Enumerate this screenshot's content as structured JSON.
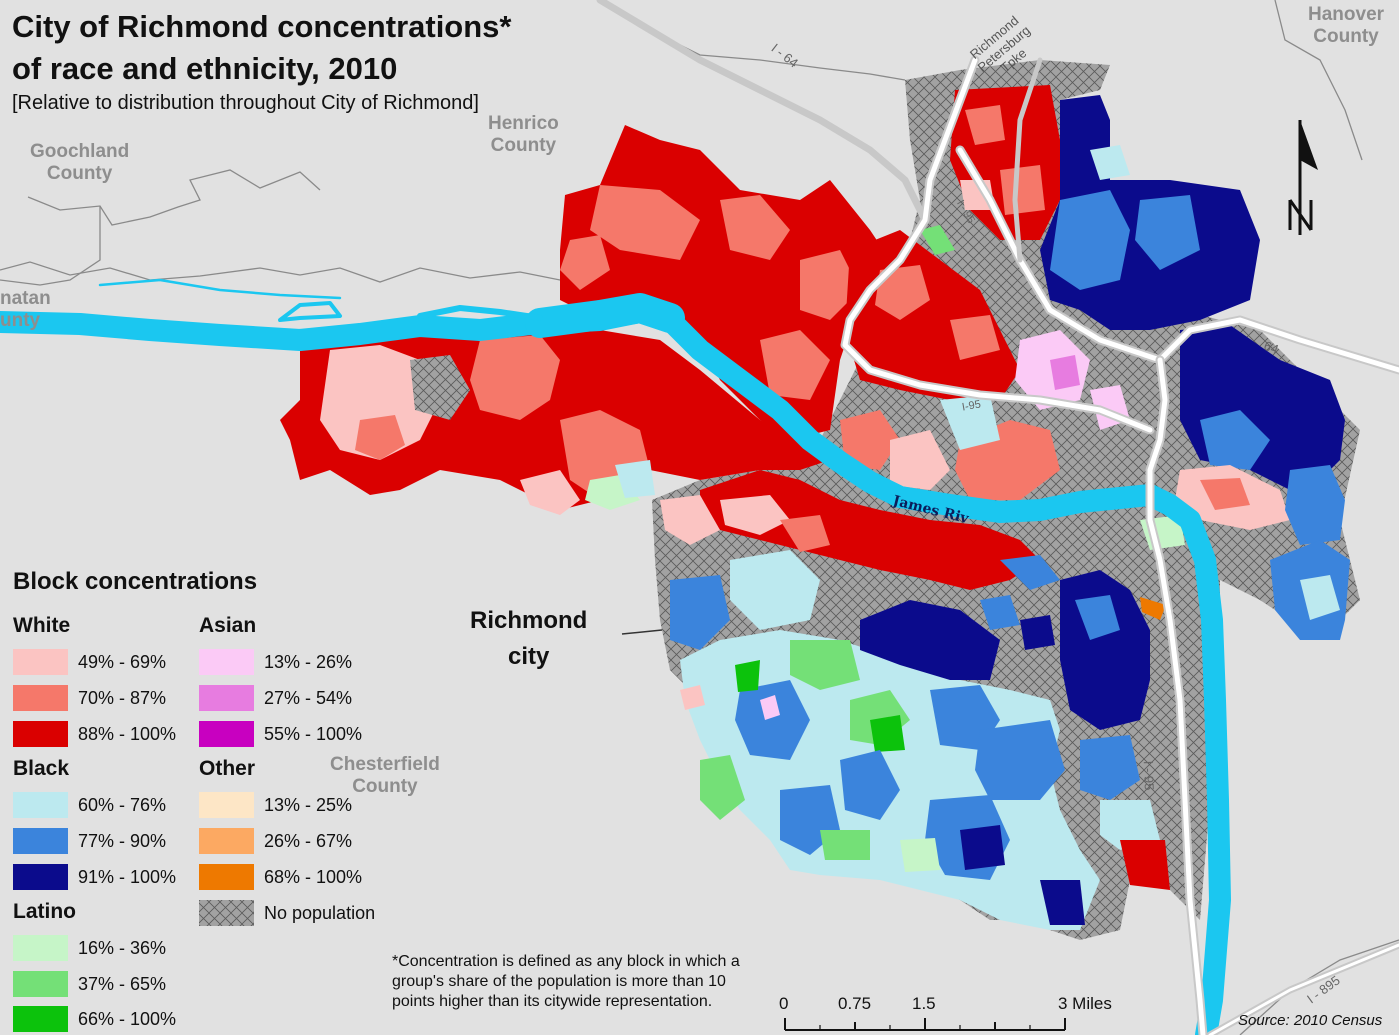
{
  "title_line1": "City of Richmond concentrations*",
  "title_line2": "of race and ethnicity, 2010",
  "subtitle": "[Relative to distribution throughout City of Richmond]",
  "places": {
    "goochland_1": "Goochland",
    "goochland_2": "County",
    "henrico_1": "Henrico",
    "henrico_2": "County",
    "hanover_1": "Hanover",
    "hanover_2": "County",
    "powhatan_1": "natan",
    "powhatan_2": "unty",
    "chesterfield_1": "Chesterfield",
    "chesterfield_2": "County"
  },
  "city_label_1": "Richmond",
  "city_label_2": "city",
  "river_label": "James Riv",
  "roads": {
    "i64_nw": "I - 64",
    "i64_east": "64",
    "i95": "I - 95",
    "i95_mid": "I-95",
    "i95_south": "I - 95",
    "i895": "I - 895",
    "pike_1": "Richmond",
    "pike_2": "Petersburg",
    "pike_3": "Tpke"
  },
  "north_arrow": "N",
  "legend": {
    "title": "Block concentrations",
    "groups": [
      {
        "name": "White",
        "items": [
          {
            "label": "49% - 69%",
            "color": "#fbc4c2"
          },
          {
            "label": "70% - 87%",
            "color": "#f5786a"
          },
          {
            "label": "88% - 100%",
            "color": "#da0000"
          }
        ]
      },
      {
        "name": "Asian",
        "items": [
          {
            "label": "13% - 26%",
            "color": "#fbcaf6"
          },
          {
            "label": "27% - 54%",
            "color": "#e77ce0"
          },
          {
            "label": "55% - 100%",
            "color": "#c800c0"
          }
        ]
      },
      {
        "name": "Black",
        "items": [
          {
            "label": "60% - 76%",
            "color": "#bce9ef"
          },
          {
            "label": "77% - 90%",
            "color": "#3b84dc"
          },
          {
            "label": "91% - 100%",
            "color": "#0b0b8c"
          }
        ]
      },
      {
        "name": "Other",
        "items": [
          {
            "label": "13% - 25%",
            "color": "#fde6c6"
          },
          {
            "label": "26% - 67%",
            "color": "#fca962"
          },
          {
            "label": "68% - 100%",
            "color": "#ee7900"
          }
        ]
      },
      {
        "name": "Latino",
        "items": [
          {
            "label": "16% - 36%",
            "color": "#c6f5c8"
          },
          {
            "label": "37% - 65%",
            "color": "#74e077"
          },
          {
            "label": "66% - 100%",
            "color": "#0cc20c"
          }
        ]
      }
    ],
    "no_population": "No population"
  },
  "footnote": "*Concentration is defined as any block in which a group's share of the population is more than 10 points higher than its citywide representation.",
  "scale": {
    "labels": [
      "0",
      "0.75",
      "1.5",
      "3 Miles"
    ]
  },
  "source": "Source: 2010 Census",
  "colors": {
    "background": "#e1e1e1",
    "river": "#1bc7f0",
    "county_line": "#8a8a8a",
    "nopop": "#9c9c9c",
    "highway": "#ffffff"
  }
}
